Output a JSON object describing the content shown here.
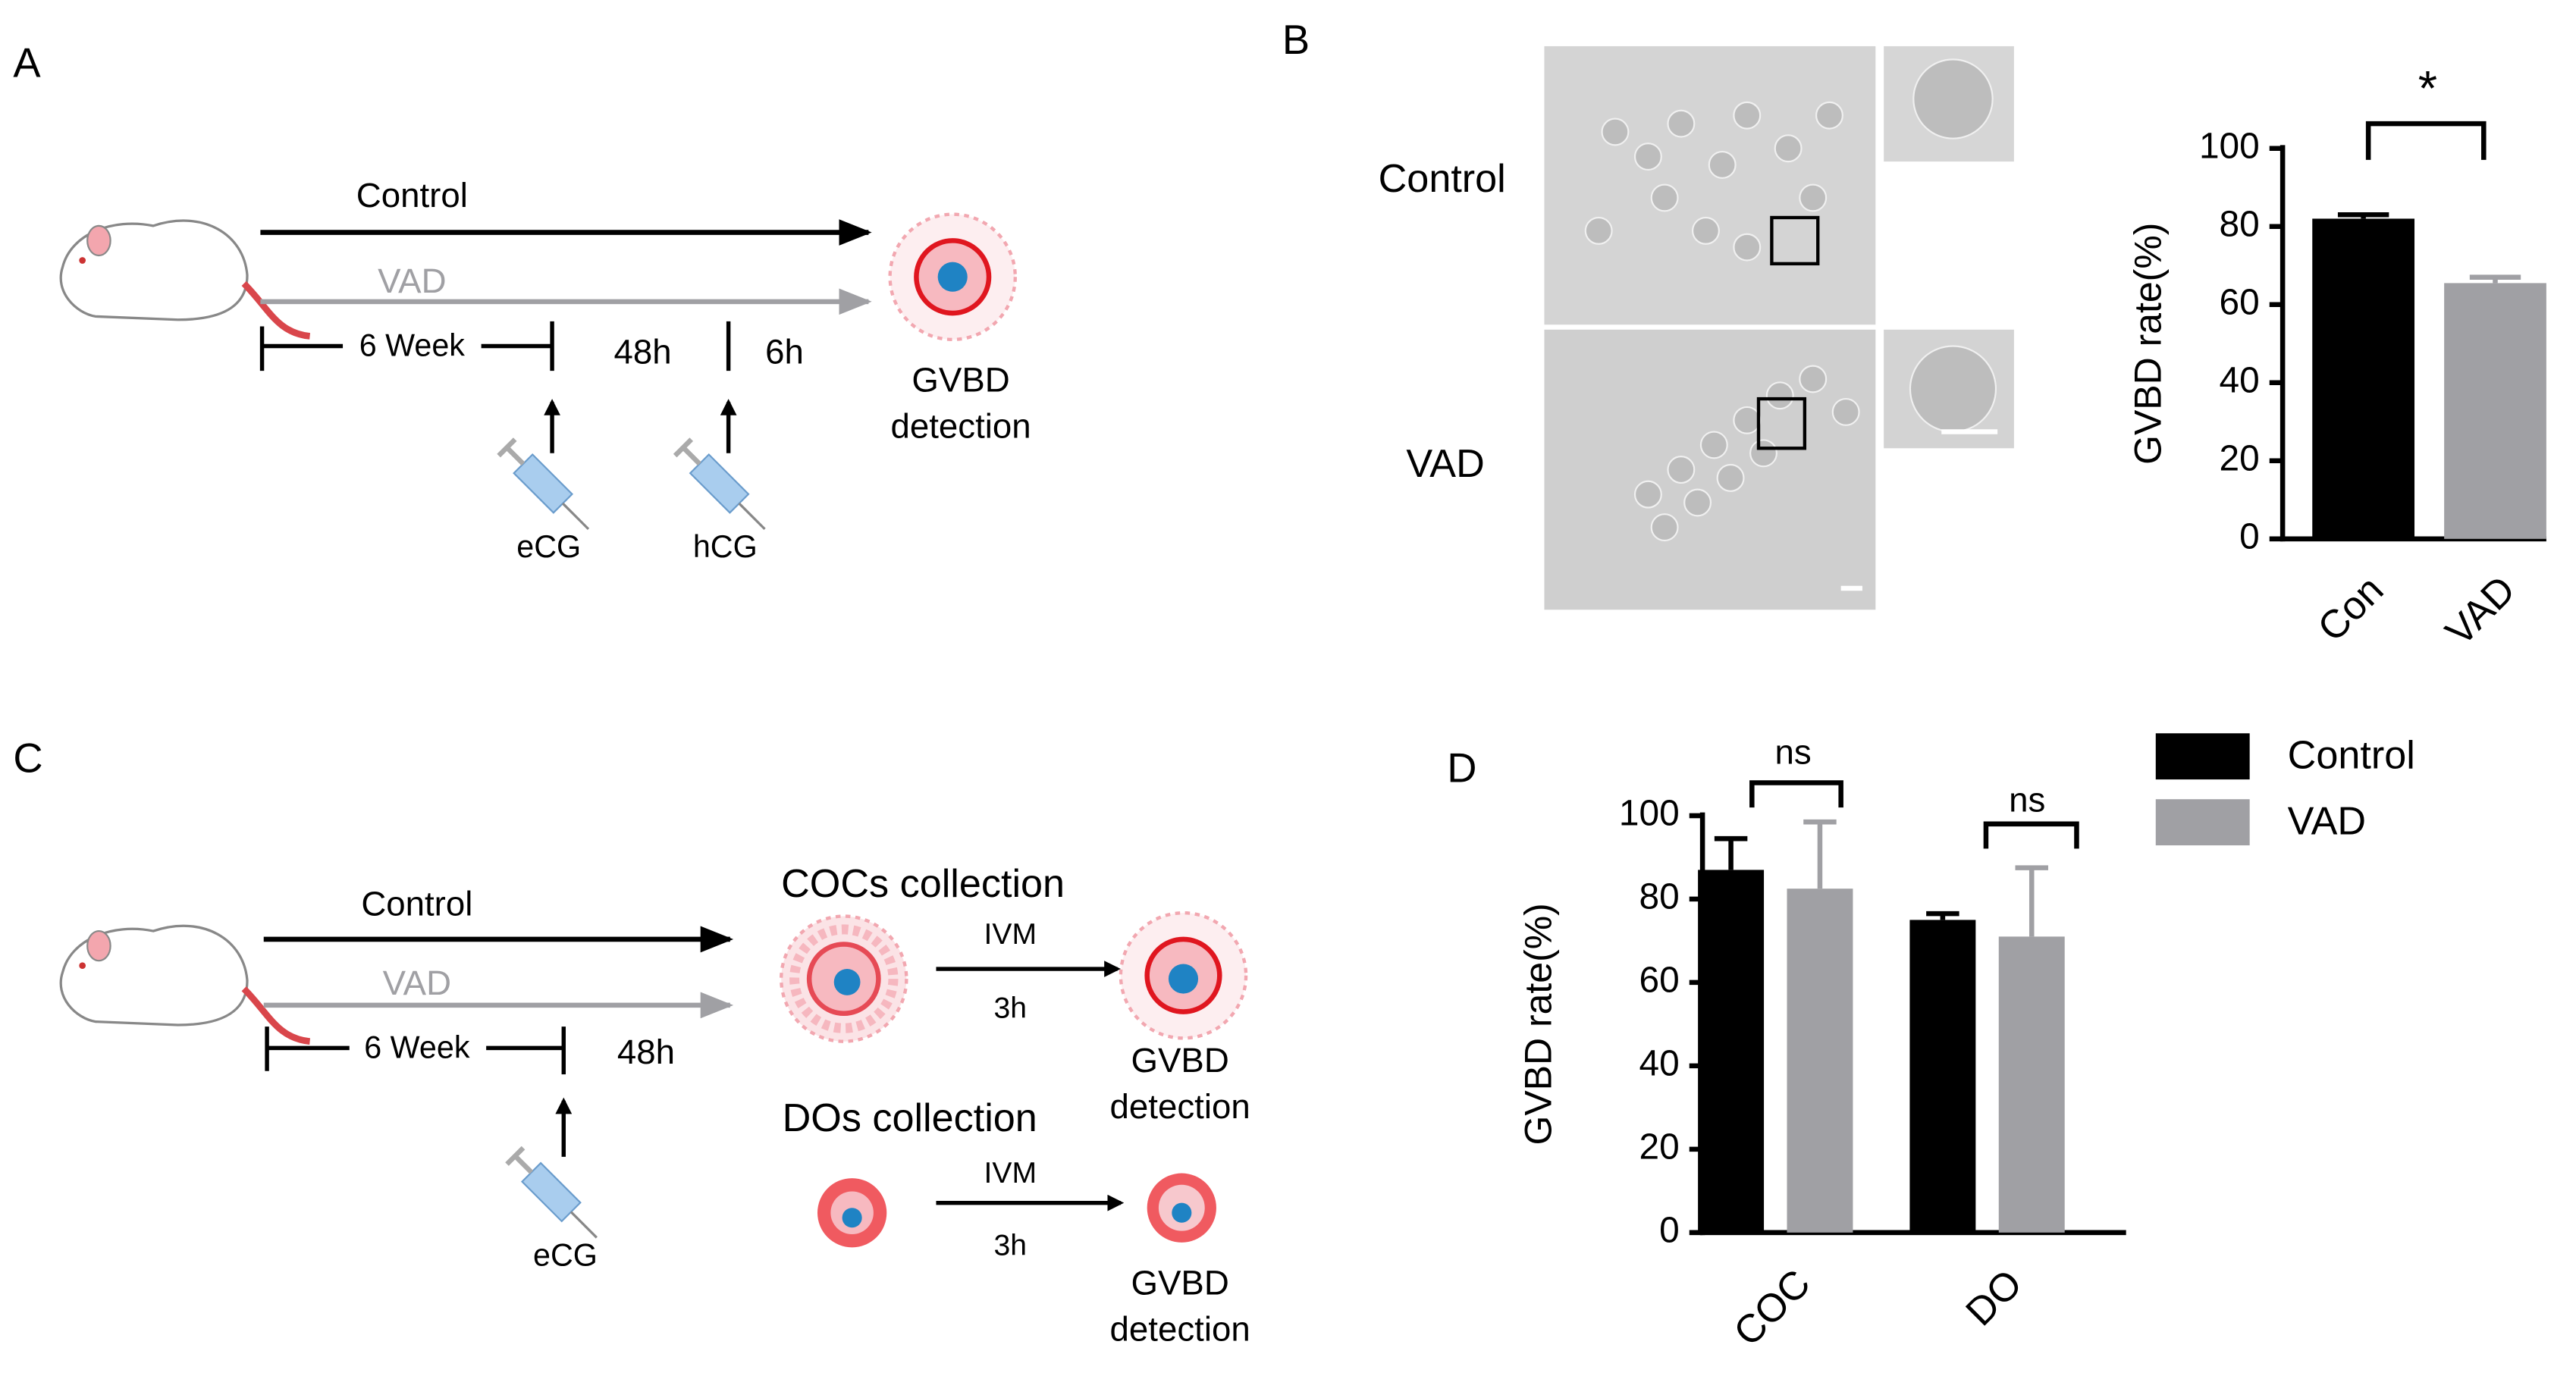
{
  "panels": {
    "a": "A",
    "b": "B",
    "c": "C",
    "d": "D"
  },
  "diagram_a": {
    "control": "Control",
    "vad": "VAD",
    "duration": "6 Week",
    "interval1": "48h",
    "interval2": "6h",
    "injection1": "eCG",
    "injection2": "hCG",
    "result_line1": "GVBD",
    "result_line2": "detection"
  },
  "panel_b": {
    "row1": "Control",
    "row2": "VAD"
  },
  "diagram_c": {
    "control": "Control",
    "vad": "VAD",
    "duration": "6 Week",
    "interval1": "48h",
    "injection1": "eCG",
    "coc_title": "COCs collection",
    "coc_step": "IVM",
    "coc_time": "3h",
    "coc_result_line1": "GVBD",
    "coc_result_line2": "detection",
    "do_title": "DOs collection",
    "do_step": "IVM",
    "do_time": "3h",
    "do_result_line1": "GVBD",
    "do_result_line2": "detection"
  },
  "chart_data": [
    {
      "type": "bar",
      "categories": [
        "Con",
        "VAD"
      ],
      "values": [
        82,
        65.5
      ],
      "errors": [
        1,
        1.5
      ],
      "colors": [
        "#000000",
        "#a0a0a4"
      ],
      "y_label": "GVBD rate(%)",
      "ylim": [
        0,
        100
      ],
      "yticks": [
        0,
        20,
        40,
        60,
        80,
        100
      ],
      "annotations": [
        "*"
      ]
    },
    {
      "type": "bar",
      "categories": [
        "COC",
        "DO"
      ],
      "series": [
        {
          "name": "Control",
          "color": "#000000",
          "values": [
            87,
            75
          ],
          "errors": [
            7.5,
            1.5
          ]
        },
        {
          "name": "VAD",
          "color": "#a0a0a4",
          "values": [
            82.5,
            71
          ],
          "errors": [
            16,
            16.5
          ]
        }
      ],
      "y_label": "GVBD rate(%)",
      "ylim": [
        0,
        100
      ],
      "yticks": [
        0,
        20,
        40,
        60,
        80,
        100
      ],
      "annotations": [
        "ns",
        "ns"
      ],
      "legend": "top-right"
    }
  ]
}
